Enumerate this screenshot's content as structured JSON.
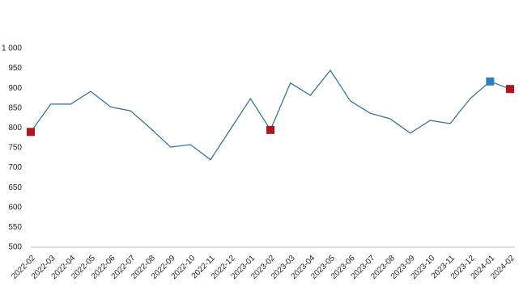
{
  "chart_data": {
    "type": "line",
    "categories": [
      "2022-02",
      "2022-03",
      "2022-04",
      "2022-05",
      "2022-06",
      "2022-07",
      "2022-08",
      "2022-09",
      "2022-10",
      "2022-11",
      "2022-12",
      "2023-01",
      "2023-02",
      "2023-03",
      "2023-04",
      "2023-05",
      "2023-06",
      "2023-07",
      "2023-08",
      "2023-09",
      "2023-10",
      "2023-11",
      "2023-12",
      "2024-01",
      "2024-02"
    ],
    "series": [
      {
        "color": "#2a6a9c",
        "values": [
          790,
          860,
          860,
          892,
          853,
          843,
          799,
          752,
          758,
          720,
          797,
          874,
          795,
          913,
          882,
          945,
          868,
          837,
          823,
          787,
          819,
          811,
          874,
          917,
          898
        ],
        "marker_colors": [
          "#b3141c",
          null,
          null,
          null,
          null,
          null,
          null,
          null,
          null,
          null,
          null,
          null,
          "#b3141c",
          null,
          null,
          null,
          null,
          null,
          null,
          null,
          null,
          null,
          null,
          "#2f7fbf",
          "#b3141c"
        ]
      }
    ],
    "ylim": [
      500,
      1000
    ],
    "yticks": [
      500,
      550,
      600,
      650,
      700,
      750,
      800,
      850,
      900,
      950,
      {
        "value": 1000,
        "label": "1 000"
      }
    ],
    "grid": false
  }
}
